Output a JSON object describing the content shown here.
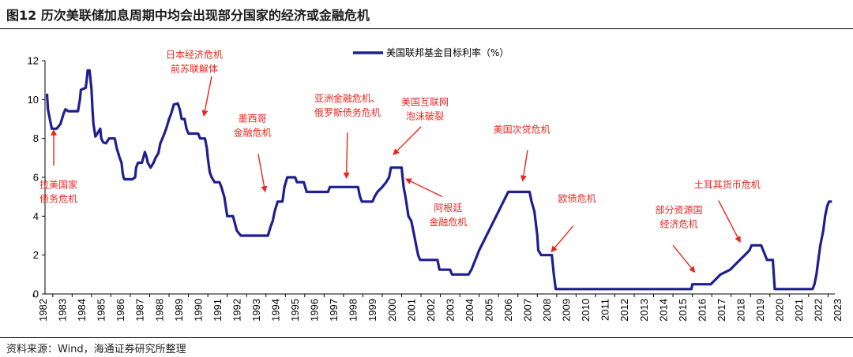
{
  "title": "图12 历次美联储加息周期中均会出现部分国家的经济或金融危机",
  "source": "资料来源：Wind，海通证券研究所整理",
  "colors": {
    "series": "#1f1f8f",
    "annotation": "#e8261f"
  },
  "chart_data": {
    "type": "line",
    "legend": {
      "entry": "美国联邦基金目标利率（%）",
      "placement": "top-center"
    },
    "ylim": [
      0,
      12
    ],
    "yticks": [
      "0",
      "2",
      "4",
      "6",
      "8",
      "10",
      "12"
    ],
    "xlim": [
      1982,
      2023.5
    ],
    "xticks": [
      "1982",
      "1983",
      "1984",
      "1985",
      "1986",
      "1987",
      "1988",
      "1989",
      "1990",
      "1991",
      "1992",
      "1993",
      "1994",
      "1995",
      "1996",
      "1997",
      "1998",
      "1999",
      "2000",
      "2001",
      "2002",
      "2003",
      "2004",
      "2005",
      "2006",
      "2007",
      "2008",
      "2009",
      "2010",
      "2011",
      "2012",
      "2013",
      "2014",
      "2015",
      "2016",
      "2017",
      "2018",
      "2019",
      "2020",
      "2021",
      "2022",
      "2023"
    ],
    "series": [
      {
        "points": [
          [
            1982.7,
            10.3
          ],
          [
            1982.75,
            9.5
          ],
          [
            1982.85,
            9.0
          ],
          [
            1982.95,
            8.5
          ],
          [
            1983.2,
            8.5
          ],
          [
            1983.4,
            8.75
          ],
          [
            1983.55,
            9.25
          ],
          [
            1983.65,
            9.5
          ],
          [
            1983.8,
            9.4
          ],
          [
            1984.3,
            9.4
          ],
          [
            1984.4,
            10.0
          ],
          [
            1984.45,
            10.5
          ],
          [
            1984.7,
            10.6
          ],
          [
            1984.75,
            11.0
          ],
          [
            1984.8,
            11.5
          ],
          [
            1984.9,
            11.5
          ],
          [
            1984.95,
            11.0
          ],
          [
            1985.0,
            10.5
          ],
          [
            1985.05,
            9.5
          ],
          [
            1985.1,
            8.75
          ],
          [
            1985.2,
            8.1
          ],
          [
            1985.3,
            8.25
          ],
          [
            1985.45,
            8.5
          ],
          [
            1985.5,
            8.0
          ],
          [
            1985.6,
            7.8
          ],
          [
            1985.75,
            7.75
          ],
          [
            1985.9,
            8.0
          ],
          [
            1986.2,
            8.0
          ],
          [
            1986.3,
            7.5
          ],
          [
            1986.45,
            7.0
          ],
          [
            1986.55,
            6.75
          ],
          [
            1986.6,
            6.25
          ],
          [
            1986.65,
            6.0
          ],
          [
            1986.7,
            5.9
          ],
          [
            1987.1,
            5.9
          ],
          [
            1987.25,
            6.0
          ],
          [
            1987.3,
            6.5
          ],
          [
            1987.4,
            6.75
          ],
          [
            1987.6,
            6.75
          ],
          [
            1987.75,
            7.3
          ],
          [
            1987.85,
            7.0
          ],
          [
            1987.9,
            6.75
          ],
          [
            1988.05,
            6.5
          ],
          [
            1988.2,
            6.75
          ],
          [
            1988.3,
            7.0
          ],
          [
            1988.45,
            7.25
          ],
          [
            1988.55,
            7.75
          ],
          [
            1988.7,
            8.1
          ],
          [
            1988.85,
            8.5
          ],
          [
            1989.0,
            9.0
          ],
          [
            1989.1,
            9.25
          ],
          [
            1989.25,
            9.75
          ],
          [
            1989.45,
            9.8
          ],
          [
            1989.55,
            9.5
          ],
          [
            1989.65,
            9.0
          ],
          [
            1989.8,
            9.0
          ],
          [
            1989.9,
            8.5
          ],
          [
            1990.0,
            8.25
          ],
          [
            1990.5,
            8.25
          ],
          [
            1990.6,
            8.0
          ],
          [
            1990.85,
            8.0
          ],
          [
            1990.95,
            7.5
          ],
          [
            1991.0,
            7.0
          ],
          [
            1991.1,
            6.25
          ],
          [
            1991.2,
            6.0
          ],
          [
            1991.35,
            5.75
          ],
          [
            1991.6,
            5.75
          ],
          [
            1991.7,
            5.5
          ],
          [
            1991.85,
            5.0
          ],
          [
            1992.0,
            4.0
          ],
          [
            1992.3,
            4.0
          ],
          [
            1992.5,
            3.25
          ],
          [
            1992.7,
            3.0
          ],
          [
            1994.1,
            3.0
          ],
          [
            1994.25,
            3.5
          ],
          [
            1994.35,
            3.75
          ],
          [
            1994.45,
            4.25
          ],
          [
            1994.6,
            4.75
          ],
          [
            1994.85,
            4.75
          ],
          [
            1994.95,
            5.5
          ],
          [
            1995.1,
            6.0
          ],
          [
            1995.5,
            6.0
          ],
          [
            1995.6,
            5.75
          ],
          [
            1995.95,
            5.75
          ],
          [
            1996.1,
            5.25
          ],
          [
            1997.2,
            5.25
          ],
          [
            1997.3,
            5.5
          ],
          [
            1998.75,
            5.5
          ],
          [
            1998.85,
            5.0
          ],
          [
            1998.95,
            4.75
          ],
          [
            1999.5,
            4.75
          ],
          [
            1999.6,
            5.0
          ],
          [
            1999.75,
            5.25
          ],
          [
            2000.0,
            5.5
          ],
          [
            2000.2,
            5.75
          ],
          [
            2000.35,
            6.0
          ],
          [
            2000.45,
            6.5
          ],
          [
            2001.0,
            6.5
          ],
          [
            2001.1,
            5.5
          ],
          [
            2001.2,
            5.0
          ],
          [
            2001.35,
            4.0
          ],
          [
            2001.5,
            3.75
          ],
          [
            2001.65,
            3.0
          ],
          [
            2001.75,
            2.5
          ],
          [
            2001.85,
            2.0
          ],
          [
            2001.95,
            1.75
          ],
          [
            2002.85,
            1.75
          ],
          [
            2002.95,
            1.25
          ],
          [
            2003.5,
            1.25
          ],
          [
            2003.6,
            1.0
          ],
          [
            2004.45,
            1.0
          ],
          [
            2004.6,
            1.25
          ],
          [
            2005.0,
            2.25
          ],
          [
            2005.5,
            3.25
          ],
          [
            2006.0,
            4.25
          ],
          [
            2006.5,
            5.25
          ],
          [
            2007.6,
            5.25
          ],
          [
            2007.7,
            4.75
          ],
          [
            2007.85,
            4.25
          ],
          [
            2008.0,
            3.0
          ],
          [
            2008.05,
            2.25
          ],
          [
            2008.2,
            2.0
          ],
          [
            2008.75,
            2.0
          ],
          [
            2008.85,
            1.0
          ],
          [
            2008.95,
            0.25
          ],
          [
            2015.95,
            0.25
          ],
          [
            2016.0,
            0.5
          ],
          [
            2016.95,
            0.5
          ],
          [
            2017.2,
            0.75
          ],
          [
            2017.45,
            1.0
          ],
          [
            2017.95,
            1.25
          ],
          [
            2018.2,
            1.5
          ],
          [
            2018.45,
            1.75
          ],
          [
            2018.7,
            2.0
          ],
          [
            2018.95,
            2.25
          ],
          [
            2019.05,
            2.5
          ],
          [
            2019.55,
            2.5
          ],
          [
            2019.65,
            2.25
          ],
          [
            2019.75,
            2.0
          ],
          [
            2019.85,
            1.75
          ],
          [
            2020.15,
            1.75
          ],
          [
            2020.2,
            1.0
          ],
          [
            2020.25,
            0.25
          ],
          [
            2022.2,
            0.25
          ],
          [
            2022.3,
            0.5
          ],
          [
            2022.4,
            1.0
          ],
          [
            2022.5,
            1.75
          ],
          [
            2022.6,
            2.5
          ],
          [
            2022.75,
            3.25
          ],
          [
            2022.85,
            4.0
          ],
          [
            2022.95,
            4.5
          ],
          [
            2023.05,
            4.75
          ],
          [
            2023.2,
            4.75
          ]
        ]
      }
    ],
    "annotations": [
      {
        "id": "latam-debt",
        "lines": [
          "拉美国家",
          "债务危机"
        ],
        "x": 1983.3,
        "y": 5.45
      },
      {
        "id": "japan-ussr",
        "lines": [
          "日本经济危机",
          "前苏联解体"
        ],
        "x": 1990.3,
        "y": 12.15
      },
      {
        "id": "mexico",
        "lines": [
          "墨西哥",
          "金融危机"
        ],
        "x": 1993.3,
        "y": 8.85
      },
      {
        "id": "asia-russia",
        "lines": [
          "亚洲金融危机、",
          "俄罗斯债务危机"
        ],
        "x": 1998.2,
        "y": 9.9
      },
      {
        "id": "dotcom",
        "lines": [
          "美国互联网",
          "泡沫破裂"
        ],
        "x": 2002.2,
        "y": 9.7
      },
      {
        "id": "argentina",
        "lines": [
          "阿根廷",
          "金融危机"
        ],
        "x": 2003.4,
        "y": 4.25
      },
      {
        "id": "subprime",
        "lines": [
          "美国次贷危机"
        ],
        "x": 2007.2,
        "y": 8.3
      },
      {
        "id": "eurodebt",
        "lines": [
          "欧债危机"
        ],
        "x": 2010.05,
        "y": 4.75
      },
      {
        "id": "resource",
        "lines": [
          "部分资源国",
          "经济危机"
        ],
        "x": 2015.3,
        "y": 4.15
      },
      {
        "id": "turkey",
        "lines": [
          "土耳其货币危机"
        ],
        "x": 2017.8,
        "y": 5.45
      }
    ],
    "arrows": [
      {
        "from": [
          1983.05,
          6.6
        ],
        "to": [
          1983.05,
          8.4
        ]
      },
      {
        "from": [
          1991.2,
          11.2
        ],
        "to": [
          1990.8,
          9.2
        ]
      },
      {
        "from": [
          1993.6,
          7.2
        ],
        "to": [
          1993.95,
          5.3
        ]
      },
      {
        "from": [
          1998.2,
          8.3
        ],
        "to": [
          1998.15,
          6.0
        ]
      },
      {
        "from": [
          2002.0,
          8.6
        ],
        "to": [
          2000.6,
          7.2
        ]
      },
      {
        "from": [
          2003.1,
          5.0
        ],
        "to": [
          2001.25,
          5.9
        ]
      },
      {
        "from": [
          2007.5,
          7.4
        ],
        "to": [
          2007.25,
          5.85
        ]
      },
      {
        "from": [
          2009.85,
          3.5
        ],
        "to": [
          2008.75,
          2.2
        ]
      },
      {
        "from": [
          2015.0,
          2.5
        ],
        "to": [
          2016.1,
          1.15
        ]
      },
      {
        "from": [
          2017.35,
          4.8
        ],
        "to": [
          2018.45,
          2.7
        ]
      }
    ]
  }
}
